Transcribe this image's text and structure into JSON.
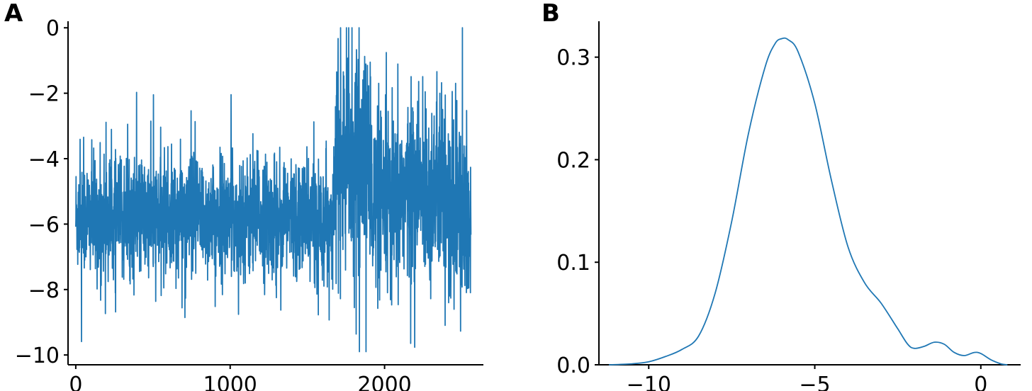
{
  "panels": {
    "a_label": "A",
    "b_label": "B"
  },
  "chart_data": [
    {
      "id": "A",
      "type": "line",
      "title": "",
      "xlabel": "",
      "ylabel": "",
      "xlim": [
        -50,
        2640
      ],
      "ylim": [
        -10.3,
        0.2
      ],
      "xticks": [
        0,
        1000,
        2000
      ],
      "xtick_labels": [
        "0",
        "1000",
        "2000"
      ],
      "yticks": [
        0,
        -2,
        -4,
        -6,
        -8,
        -10
      ],
      "ytick_labels": [
        "0",
        "−2",
        "−4",
        "−6",
        "−8",
        "−10"
      ],
      "grid": false,
      "series": [
        {
          "n_points": 2560,
          "color": "#1f77b4",
          "segments": [
            {
              "x_from": 0,
              "x_to": 1680,
              "mean": -5.8,
              "spread": 0.9
            },
            {
              "x_from": 1680,
              "x_to": 1920,
              "mean": -4.0,
              "spread": 1.6
            },
            {
              "x_from": 1920,
              "x_to": 2100,
              "mean": -5.5,
              "spread": 1.4
            },
            {
              "x_from": 2100,
              "x_to": 2400,
              "mean": -5.0,
              "spread": 1.4
            },
            {
              "x_from": 2400,
              "x_to": 2560,
              "mean": -5.8,
              "spread": 1.5
            }
          ],
          "upper_bound": 0,
          "lower_bound": -9.9
        }
      ]
    },
    {
      "id": "B",
      "type": "line",
      "title": "",
      "xlabel": "",
      "ylabel": "",
      "xlim": [
        -11.5,
        1.2
      ],
      "ylim": [
        0,
        0.335
      ],
      "xticks": [
        -10,
        -5,
        0
      ],
      "xtick_labels": [
        "−10",
        "−5",
        "0"
      ],
      "yticks": [
        0,
        0.1,
        0.2,
        0.3
      ],
      "ytick_labels": [
        "0.0",
        "0.1",
        "0.2",
        "0.3"
      ],
      "grid": false,
      "series": [
        {
          "color": "#1f77b4",
          "x": [
            -11.2,
            -10.5,
            -10.0,
            -9.5,
            -9.0,
            -8.5,
            -8.0,
            -7.5,
            -7.0,
            -6.5,
            -6.2,
            -6.0,
            -5.8,
            -5.5,
            -5.0,
            -4.5,
            -4.0,
            -3.5,
            -3.0,
            -2.5,
            -2.2,
            -2.0,
            -1.7,
            -1.4,
            -1.1,
            -0.8,
            -0.5,
            -0.2,
            0.0,
            0.3,
            0.6,
            0.8
          ],
          "y": [
            0.0,
            0.001,
            0.003,
            0.008,
            0.015,
            0.028,
            0.07,
            0.14,
            0.225,
            0.29,
            0.313,
            0.318,
            0.317,
            0.305,
            0.255,
            0.18,
            0.115,
            0.08,
            0.06,
            0.035,
            0.02,
            0.016,
            0.018,
            0.022,
            0.02,
            0.012,
            0.009,
            0.012,
            0.011,
            0.005,
            0.001,
            0.0
          ]
        }
      ]
    }
  ]
}
